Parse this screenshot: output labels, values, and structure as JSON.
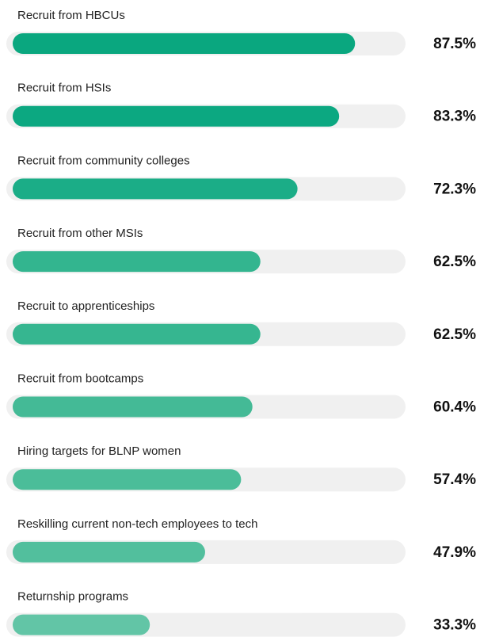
{
  "chart_data": {
    "type": "bar",
    "categories": [
      "Recruit from HBCUs",
      "Recruit from HSIs",
      "Recruit from community colleges",
      "Recruit from other MSIs",
      "Recruit to apprenticeships",
      "Recruit from bootcamps",
      "Hiring targets for BLNP women",
      "Reskilling current non-tech employees to tech",
      "Returnship programs"
    ],
    "values": [
      87.5,
      83.3,
      72.3,
      62.5,
      62.5,
      60.4,
      57.4,
      47.9,
      33.3
    ],
    "value_labels": [
      "87.5%",
      "83.3%",
      "72.3%",
      "62.5%",
      "62.5%",
      "60.4%",
      "57.4%",
      "47.9%",
      "33.3%"
    ],
    "colors": [
      "#0aa77f",
      "#0ca881",
      "#1bad87",
      "#33b58f",
      "#36b690",
      "#44ba96",
      "#4bbd99",
      "#52bf9d",
      "#62c5a6"
    ]
  }
}
